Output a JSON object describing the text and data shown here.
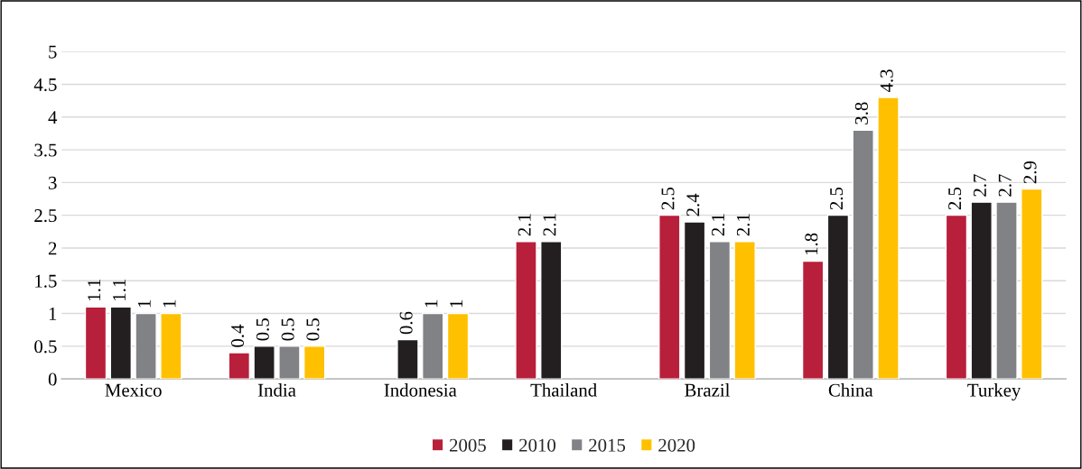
{
  "chart_data": {
    "type": "bar",
    "categories": [
      "Mexico",
      "India",
      "Indonesia",
      "Thailand",
      "Brazil",
      "China",
      "Turkey"
    ],
    "series": [
      {
        "name": "2005",
        "color": "#b81f3a",
        "values": [
          1.1,
          0.4,
          null,
          2.1,
          2.5,
          1.8,
          2.5
        ]
      },
      {
        "name": "2010",
        "color": "#231f20",
        "values": [
          1.1,
          0.5,
          0.6,
          2.1,
          2.4,
          2.5,
          2.7
        ]
      },
      {
        "name": "2015",
        "color": "#808285",
        "values": [
          1,
          0.5,
          1,
          null,
          2.1,
          3.8,
          2.7
        ]
      },
      {
        "name": "2020",
        "color": "#ffc000",
        "values": [
          1,
          0.5,
          1,
          null,
          2.1,
          4.3,
          2.9
        ]
      }
    ],
    "ylim": [
      0,
      5
    ],
    "yticks": [
      0,
      0.5,
      1,
      1.5,
      2,
      2.5,
      3,
      3.5,
      4,
      4.5,
      5
    ],
    "grid": "y",
    "legend": "bottom",
    "data_labels": true
  }
}
